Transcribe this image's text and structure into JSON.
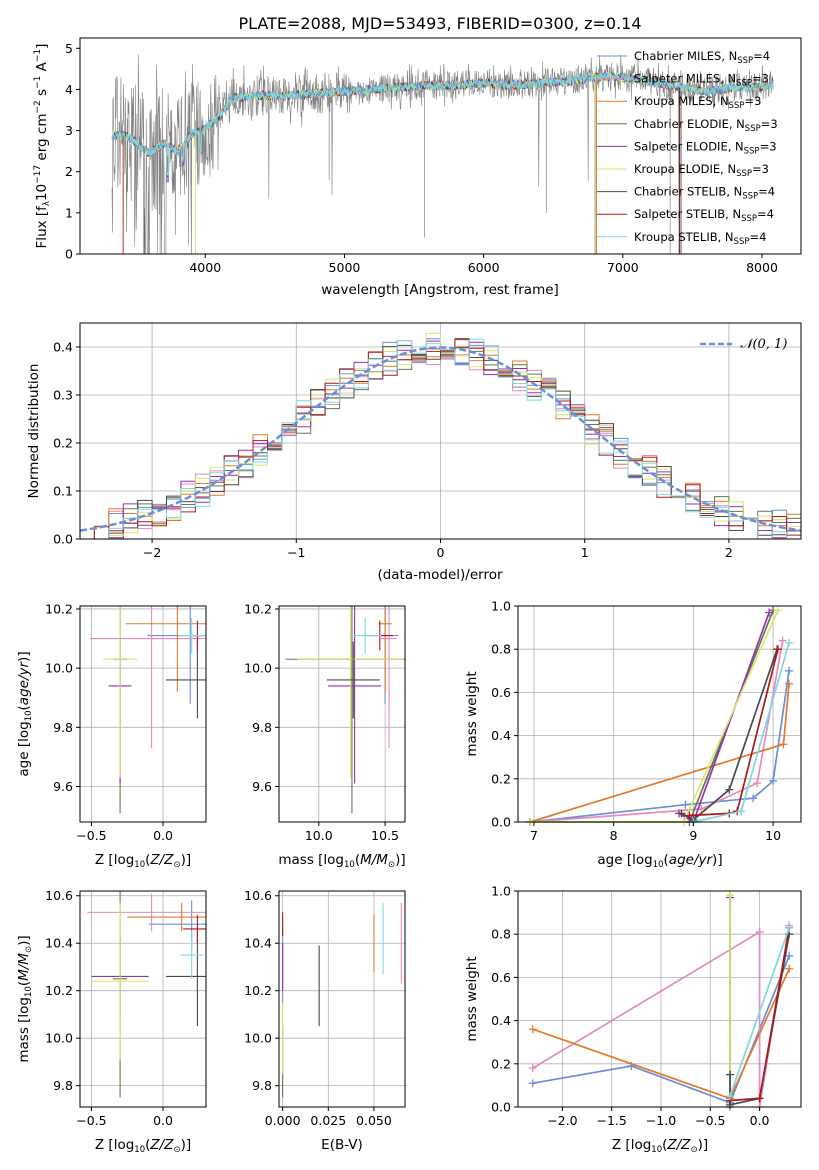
{
  "title": "PLATE=2088, MJD=53493, FIBERID=0300, z=0.14",
  "colors": {
    "chabrier_miles": "#6b8fd6",
    "salpeter_miles": "#e58ac0",
    "kroupa_miles": "#e07b2a",
    "chabrier_elodie": "#5b7d4f",
    "salpeter_elodie": "#9b2fb0",
    "kroupa_elodie": "#d8e86a",
    "chabrier_stelib": "#4a4a4a",
    "salpeter_stelib": "#b01818",
    "kroupa_stelib": "#7fd8e0",
    "observed": "#808080"
  },
  "chart_data": [
    {
      "id": "spectrum",
      "type": "line",
      "xlabel": "wavelength [Angstrom, rest frame]",
      "ylabel": "Flux [f_λ10^-17 erg cm^-2 s^-1 A^-1]",
      "xlim": [
        3100,
        8280
      ],
      "ylim": [
        0,
        5.25
      ],
      "xticks": [
        "4000",
        "5000",
        "6000",
        "7000",
        "8000"
      ],
      "yticks": [
        "0",
        "1",
        "2",
        "3",
        "4",
        "5"
      ],
      "grid": false,
      "legend_position": "top-right",
      "legend": [
        {
          "name": "Chabrier MILES",
          "nssp": "4"
        },
        {
          "name": "Salpeter MILES",
          "nssp": "3"
        },
        {
          "name": "Kroupa MILES",
          "nssp": "3"
        },
        {
          "name": "Chabrier ELODIE",
          "nssp": "3"
        },
        {
          "name": "Salpeter ELODIE",
          "nssp": "3"
        },
        {
          "name": "Kroupa ELODIE",
          "nssp": "3"
        },
        {
          "name": "Chabrier STELIB",
          "nssp": "4"
        },
        {
          "name": "Salpeter STELIB",
          "nssp": "4"
        },
        {
          "name": "Kroupa STELIB",
          "nssp": "4"
        }
      ],
      "model_continuum": {
        "x": [
          3330,
          3450,
          3600,
          3700,
          3800,
          3900,
          4000,
          4100,
          4200,
          4400,
          4600,
          4800,
          5000,
          5200,
          5400,
          5600,
          5800,
          6000,
          6200,
          6400,
          6600,
          6800,
          7000,
          7200,
          7400,
          7600,
          7800,
          8000,
          8080
        ],
        "y": [
          2.9,
          2.85,
          2.45,
          2.7,
          2.5,
          2.9,
          3.05,
          3.35,
          3.8,
          3.85,
          3.85,
          3.9,
          3.95,
          4.0,
          4.05,
          4.1,
          4.1,
          4.15,
          4.1,
          4.15,
          4.2,
          4.3,
          4.3,
          4.2,
          4.05,
          3.95,
          4.05,
          4.05,
          4.15
        ]
      }
    },
    {
      "id": "residuals",
      "type": "bar",
      "xlabel": "(data-model)/error",
      "ylabel": "Normed distribution",
      "xlim": [
        -2.5,
        2.5
      ],
      "ylim": [
        0,
        0.45
      ],
      "xticks": [
        "−2",
        "−1",
        "0",
        "1",
        "2"
      ],
      "yticks": [
        "0.0",
        "0.1",
        "0.2",
        "0.3",
        "0.4"
      ],
      "grid": true,
      "legend_position": "top-right",
      "legend": [
        {
          "name": "N(0,1)"
        }
      ],
      "normal": {
        "mean": 0,
        "sigma": 1
      }
    },
    {
      "id": "age_vs_Z",
      "type": "scatter",
      "xlabel": "Z [log10(Z/Z⊙)]",
      "ylabel": "age [log10(age/yr)]",
      "xlim": [
        -0.58,
        0.3
      ],
      "ylim": [
        9.48,
        10.21
      ],
      "xticks": [
        "−0.5",
        "0.0"
      ],
      "xtick_values": [
        -0.5,
        0.0
      ],
      "yticks": [
        "9.6",
        "9.8",
        "10.0",
        "10.2"
      ],
      "ytick_values": [
        9.6,
        9.8,
        10.0,
        10.2
      ],
      "grid": true,
      "points": [
        {
          "model": "chabrier_miles",
          "x": 0.19,
          "y": 10.11,
          "xerr": 0.3,
          "yerr": 0.23
        },
        {
          "model": "salpeter_miles",
          "x": -0.08,
          "y": 10.1,
          "xerr": 0.43,
          "yerr": 0.37
        },
        {
          "model": "kroupa_miles",
          "x": 0.1,
          "y": 10.15,
          "xerr": 0.36,
          "yerr": 0.23
        },
        {
          "model": "chabrier_elodie",
          "x": -0.3,
          "y": 10.03,
          "xerr": 0.05,
          "yerr": 0.52
        },
        {
          "model": "salpeter_elodie",
          "x": -0.3,
          "y": 9.94,
          "xerr": 0.08,
          "yerr": 0.33
        },
        {
          "model": "kroupa_elodie",
          "x": -0.3,
          "y": 10.03,
          "xerr": 0.12,
          "yerr": 0.4
        },
        {
          "model": "chabrier_stelib",
          "x": 0.24,
          "y": 9.96,
          "xerr": 0.22,
          "yerr": 0.13
        },
        {
          "model": "salpeter_stelib",
          "x": 0.24,
          "y": 10.11,
          "xerr": 0.04,
          "yerr": 0.05
        },
        {
          "model": "kroupa_stelib",
          "x": 0.2,
          "y": 10.11,
          "xerr": 0.09,
          "yerr": 0.06
        }
      ]
    },
    {
      "id": "age_vs_mass",
      "type": "scatter",
      "xlabel": "mass [log10(M/M⊙)]",
      "ylabel": "",
      "xlim": [
        9.7,
        10.65
      ],
      "ylim": [
        9.48,
        10.21
      ],
      "xticks": [
        "10.0",
        "10.5"
      ],
      "xtick_values": [
        10.0,
        10.5
      ],
      "yticks": [
        "9.6",
        "9.8",
        "10.0",
        "10.2"
      ],
      "ytick_values": [
        9.6,
        9.8,
        10.0,
        10.2
      ],
      "grid": true,
      "points": [
        {
          "model": "chabrier_miles",
          "x": 10.5,
          "y": 10.11,
          "xerr": 0.1,
          "yerr": 0.23
        },
        {
          "model": "salpeter_miles",
          "x": 10.53,
          "y": 10.1,
          "xerr": 0.06,
          "yerr": 0.37
        },
        {
          "model": "kroupa_miles",
          "x": 10.5,
          "y": 10.15,
          "xerr": 0.05,
          "yerr": 0.23
        },
        {
          "model": "chabrier_elodie",
          "x": 10.25,
          "y": 10.03,
          "xerr": 0.5,
          "yerr": 0.52
        },
        {
          "model": "salpeter_elodie",
          "x": 10.27,
          "y": 9.94,
          "xerr": 0.2,
          "yerr": 0.33
        },
        {
          "model": "kroupa_elodie",
          "x": 10.24,
          "y": 10.03,
          "xerr": 0.4,
          "yerr": 0.4
        },
        {
          "model": "chabrier_stelib",
          "x": 10.26,
          "y": 9.96,
          "xerr": 0.2,
          "yerr": 0.13
        },
        {
          "model": "salpeter_stelib",
          "x": 10.46,
          "y": 10.11,
          "xerr": 0.1,
          "yerr": 0.05
        },
        {
          "model": "kroupa_stelib",
          "x": 10.35,
          "y": 10.11,
          "xerr": 0.12,
          "yerr": 0.06
        }
      ]
    },
    {
      "id": "weight_vs_age",
      "type": "line",
      "xlabel": "age [log10(age/yr)]",
      "ylabel": "mass weight",
      "xlim": [
        6.8,
        10.35
      ],
      "ylim": [
        0,
        1.0
      ],
      "xticks": [
        "7",
        "8",
        "9",
        "10"
      ],
      "xtick_values": [
        7,
        8,
        9,
        10
      ],
      "yticks": [
        "0.0",
        "0.2",
        "0.4",
        "0.6",
        "0.8",
        "1.0"
      ],
      "ytick_values": [
        0,
        0.2,
        0.4,
        0.6,
        0.8,
        1.0
      ],
      "grid": true,
      "series": [
        {
          "model": "chabrier_miles",
          "x": [
            6.95,
            8.9,
            9.75,
            10.0,
            10.2
          ],
          "y": [
            0.0,
            0.08,
            0.11,
            0.19,
            0.7
          ]
        },
        {
          "model": "salpeter_miles",
          "x": [
            6.95,
            9.1,
            9.8,
            10.12
          ],
          "y": [
            0.0,
            0.06,
            0.18,
            0.84
          ]
        },
        {
          "model": "kroupa_miles",
          "x": [
            6.95,
            10.13,
            10.2
          ],
          "y": [
            0.0,
            0.36,
            0.64
          ]
        },
        {
          "model": "chabrier_elodie",
          "x": [
            6.95,
            8.95,
            10.0
          ],
          "y": [
            0.0,
            0.0,
            0.98
          ]
        },
        {
          "model": "salpeter_elodie",
          "x": [
            8.82,
            9.0,
            9.95
          ],
          "y": [
            0.04,
            0.0,
            0.97
          ]
        },
        {
          "model": "kroupa_elodie",
          "x": [
            6.95,
            8.88,
            10.06
          ],
          "y": [
            0.0,
            0.0,
            0.98
          ]
        },
        {
          "model": "chabrier_stelib",
          "x": [
            8.85,
            9.0,
            9.45,
            10.05
          ],
          "y": [
            0.04,
            0.01,
            0.15,
            0.8
          ]
        },
        {
          "model": "salpeter_stelib",
          "x": [
            8.95,
            9.45,
            9.55,
            10.06
          ],
          "y": [
            0.03,
            0.04,
            0.05,
            0.8
          ]
        },
        {
          "model": "kroupa_stelib",
          "x": [
            9.0,
            9.6,
            10.2
          ],
          "y": [
            0.0,
            0.05,
            0.83
          ]
        }
      ]
    },
    {
      "id": "mass_vs_Z",
      "type": "scatter",
      "xlabel": "Z [log10(Z/Z⊙)]",
      "ylabel": "mass [log10(M/M⊙)]",
      "xlim": [
        -0.58,
        0.3
      ],
      "ylim": [
        9.71,
        10.62
      ],
      "xticks": [
        "−0.5",
        "0.0"
      ],
      "xtick_values": [
        -0.5,
        0.0
      ],
      "yticks": [
        "9.8",
        "10.0",
        "10.2",
        "10.4",
        "10.6"
      ],
      "ytick_values": [
        9.8,
        10.0,
        10.2,
        10.4,
        10.6
      ],
      "grid": true,
      "points": [
        {
          "model": "chabrier_miles",
          "x": 0.2,
          "y": 10.48,
          "xerr": 0.3,
          "yerr": 0.1
        },
        {
          "model": "salpeter_miles",
          "x": -0.08,
          "y": 10.53,
          "xerr": 0.45,
          "yerr": 0.08
        },
        {
          "model": "kroupa_miles",
          "x": 0.13,
          "y": 10.51,
          "xerr": 0.38,
          "yerr": 0.06
        },
        {
          "model": "chabrier_elodie",
          "x": -0.3,
          "y": 10.25,
          "xerr": 0.05,
          "yerr": 0.5
        },
        {
          "model": "salpeter_elodie",
          "x": -0.3,
          "y": 10.26,
          "xerr": 0.2,
          "yerr": 0.17
        },
        {
          "model": "kroupa_elodie",
          "x": -0.3,
          "y": 10.24,
          "xerr": 0.2,
          "yerr": 0.33
        },
        {
          "model": "chabrier_stelib",
          "x": 0.24,
          "y": 10.26,
          "xerr": 0.22,
          "yerr": 0.21
        },
        {
          "model": "salpeter_stelib",
          "x": 0.24,
          "y": 10.46,
          "xerr": 0.1,
          "yerr": 0.06
        },
        {
          "model": "kroupa_stelib",
          "x": 0.2,
          "y": 10.35,
          "xerr": 0.08,
          "yerr": 0.1
        }
      ]
    },
    {
      "id": "mass_vs_ebv",
      "type": "scatter",
      "xlabel": "E(B-V)",
      "ylabel": "",
      "xlim": [
        -0.002,
        0.067
      ],
      "ylim": [
        9.71,
        10.62
      ],
      "xticks": [
        "0.000",
        "0.025",
        "0.050"
      ],
      "xtick_values": [
        0.0,
        0.025,
        0.05
      ],
      "yticks": [
        "9.8",
        "10.0",
        "10.2",
        "10.4",
        "10.6"
      ],
      "ytick_values": [
        9.8,
        10.0,
        10.2,
        10.4,
        10.6
      ],
      "grid": true,
      "points": [
        {
          "model": "chabrier_miles",
          "x": 0.0,
          "y": 10.3,
          "xerr": 0,
          "yerr": 0.16
        },
        {
          "model": "salpeter_miles",
          "x": 0.065,
          "y": 10.4,
          "xerr": 0,
          "yerr": 0.17
        },
        {
          "model": "kroupa_miles",
          "x": 0.05,
          "y": 10.4,
          "xerr": 0,
          "yerr": 0.12
        },
        {
          "model": "chabrier_elodie",
          "x": 0.0,
          "y": 9.9,
          "xerr": 0,
          "yerr": 0.15
        },
        {
          "model": "salpeter_elodie",
          "x": 0.0,
          "y": 10.3,
          "xerr": 0,
          "yerr": 0.1
        },
        {
          "model": "kroupa_elodie",
          "x": 0.0,
          "y": 10.0,
          "xerr": 0,
          "yerr": 0.15
        },
        {
          "model": "chabrier_stelib",
          "x": 0.02,
          "y": 10.22,
          "xerr": 0,
          "yerr": 0.17
        },
        {
          "model": "salpeter_stelib",
          "x": 0.0,
          "y": 10.48,
          "xerr": 0,
          "yerr": 0.05
        },
        {
          "model": "kroupa_stelib",
          "x": 0.055,
          "y": 10.42,
          "xerr": 0,
          "yerr": 0.15
        }
      ]
    },
    {
      "id": "weight_vs_Z",
      "type": "line",
      "xlabel": "Z [log10(Z/Z⊙)]",
      "ylabel": "mass weight",
      "xlim": [
        -2.45,
        0.42
      ],
      "ylim": [
        0,
        1.0
      ],
      "xticks": [
        "−2.0",
        "−1.5",
        "−1.0",
        "−0.5",
        "0.0"
      ],
      "xtick_values": [
        -2.0,
        -1.5,
        -1.0,
        -0.5,
        0.0
      ],
      "yticks": [
        "0.0",
        "0.2",
        "0.4",
        "0.6",
        "0.8",
        "1.0"
      ],
      "ytick_values": [
        0,
        0.2,
        0.4,
        0.6,
        0.8,
        1.0
      ],
      "grid": true,
      "series": [
        {
          "model": "chabrier_miles",
          "x": [
            -2.3,
            -1.3,
            -0.3,
            0.3
          ],
          "y": [
            0.11,
            0.19,
            0.02,
            0.7
          ]
        },
        {
          "model": "salpeter_miles",
          "x": [
            -2.3,
            0.0,
            0.0,
            0.3
          ],
          "y": [
            0.18,
            0.81,
            0.0,
            0.84
          ]
        },
        {
          "model": "kroupa_miles",
          "x": [
            -2.3,
            -0.3,
            0.3
          ],
          "y": [
            0.36,
            0.04,
            0.64
          ]
        },
        {
          "model": "chabrier_elodie",
          "x": [
            -0.3,
            -0.3
          ],
          "y": [
            0.0,
            0.98
          ]
        },
        {
          "model": "salpeter_elodie",
          "x": [
            -0.3,
            -0.3
          ],
          "y": [
            0.0,
            0.97
          ]
        },
        {
          "model": "kroupa_elodie",
          "x": [
            -0.3,
            -0.3
          ],
          "y": [
            0.0,
            0.98
          ]
        },
        {
          "model": "chabrier_stelib",
          "x": [
            -0.3,
            -0.3,
            0.0,
            0.3
          ],
          "y": [
            0.15,
            0.01,
            0.04,
            0.8
          ]
        },
        {
          "model": "salpeter_stelib",
          "x": [
            -0.3,
            0.0,
            0.3
          ],
          "y": [
            0.03,
            0.04,
            0.83
          ]
        },
        {
          "model": "kroupa_stelib",
          "x": [
            -0.3,
            0.3
          ],
          "y": [
            0.05,
            0.83
          ]
        }
      ]
    }
  ]
}
